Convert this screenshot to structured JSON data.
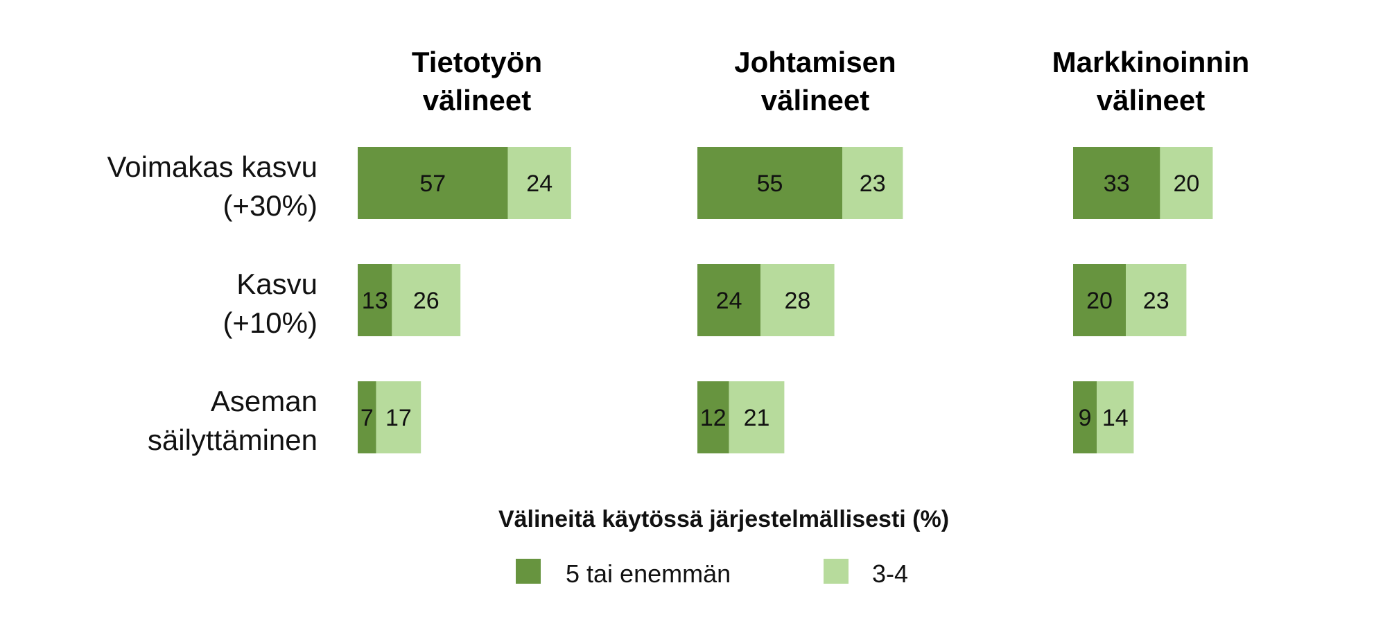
{
  "chart_data": {
    "type": "bar",
    "orientation": "horizontal",
    "stacked": true,
    "panels": [
      {
        "title": [
          "Tietotyön",
          "välineet"
        ],
        "series_values": [
          [
            57,
            13,
            7
          ],
          [
            24,
            26,
            17
          ]
        ]
      },
      {
        "title": [
          "Johtamisen",
          "välineet"
        ],
        "series_values": [
          [
            55,
            24,
            12
          ],
          [
            23,
            28,
            21
          ]
        ]
      },
      {
        "title": [
          "Markkinoinnin",
          "välineet"
        ],
        "series_values": [
          [
            33,
            20,
            9
          ],
          [
            20,
            23,
            14
          ]
        ]
      }
    ],
    "categories": [
      [
        "Voimakas kasvu",
        "(+30%)"
      ],
      [
        "Kasvu",
        "(+10%)"
      ],
      [
        "Aseman",
        "säilyttäminen"
      ]
    ],
    "series": [
      {
        "name": "5 tai enemmän",
        "color": "#67943f"
      },
      {
        "name": "3-4",
        "color": "#b7db9c"
      }
    ],
    "legend": {
      "title": "Välineitä käytössä järjestelmällisesti (%)",
      "placement": "bottom"
    },
    "axes_shown": false,
    "grid": false
  }
}
